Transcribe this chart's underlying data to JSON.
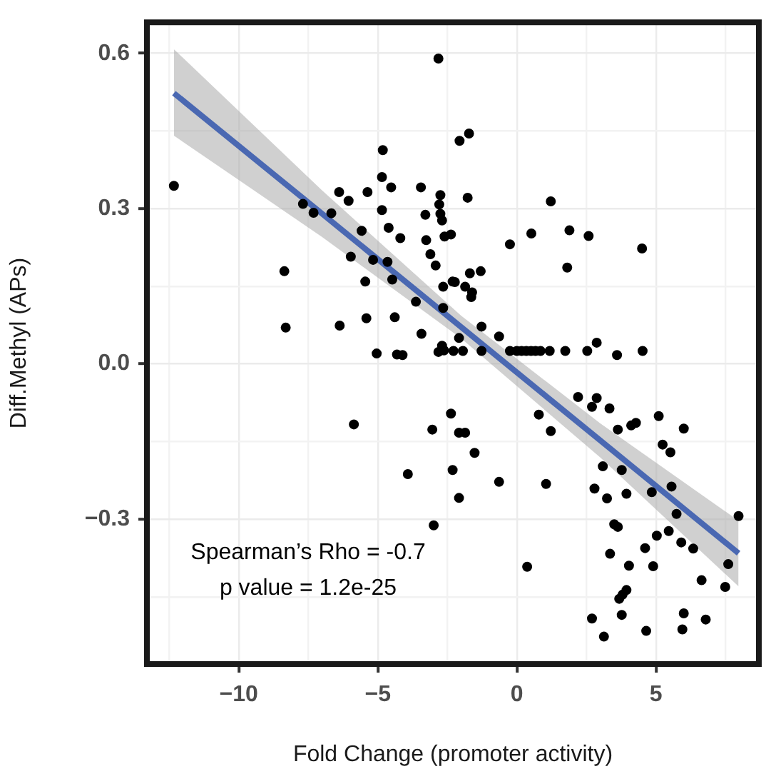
{
  "chart_data": {
    "type": "scatter",
    "xlabel": "Fold Change (promoter activity)",
    "ylabel": "Diff.Methyl (APs)",
    "annotations": [
      "Spearman’s Rho = -0.7",
      "p value = 1.2e-25"
    ],
    "xlim": [
      -13.3,
      8.7
    ],
    "ylim": [
      -0.58,
      0.66
    ],
    "xticks": [
      {
        "value": -12.5,
        "label": null
      },
      -10,
      {
        "value": -7.5,
        "label": null
      },
      -5,
      {
        "value": -2.5,
        "label": null
      },
      0,
      {
        "value": 2.5,
        "label": null
      },
      5,
      {
        "value": 7.5,
        "label": null
      }
    ],
    "yticks": [
      {
        "value": -0.45,
        "label": null
      },
      {
        "value": -0.3,
        "label": "−0.3"
      },
      {
        "value": -0.15,
        "label": null
      },
      {
        "value": 0,
        "label": "0.0"
      },
      {
        "value": 0.15,
        "label": null
      },
      {
        "value": 0.3,
        "label": "0.3"
      },
      {
        "value": 0.45,
        "label": null
      },
      {
        "value": 0.6,
        "label": "0.6"
      }
    ],
    "grid": true,
    "legend": false,
    "series": [
      {
        "marker": "circle",
        "color": "#000000",
        "x": [
          -2.82,
          -12.33,
          -4.82,
          -4.85,
          -4.52,
          -6.39,
          -6.05,
          -5.37,
          -3.45,
          -2.75,
          -2.79,
          -2.75,
          -2.69,
          -3.29,
          -4.85,
          -7.69,
          -7.31,
          -6.67,
          -5.58,
          -4.61,
          -4.19,
          -3.26,
          -2.6,
          -2.37,
          -3.11,
          -5.97,
          -5.17,
          -2.92,
          -4.65,
          -8.36,
          -5.45,
          -4.48,
          -2.65,
          -2.31,
          -3.63,
          -2.65,
          -8.31,
          -6.37,
          -5.41,
          -4.39,
          -3.43,
          -2.69,
          -1.72,
          -2.06,
          -1.77,
          1.22,
          -0.25,
          0.52,
          1.89,
          2.58,
          4.5,
          1.81,
          -2.23,
          -1.69,
          -1.3,
          -1.86,
          -1.61,
          -1.64,
          -1.27,
          -0.64,
          -2.08,
          -2.28,
          -1.94,
          -1.27,
          -0.25,
          0,
          0.17,
          0.34,
          0.51,
          0.67,
          0.85,
          1.18,
          1.74,
          2.53,
          2.87,
          3.6,
          4.52,
          -5.04,
          -4.31,
          -4.11,
          -2.82,
          -2.62,
          -5.86,
          -3.04,
          -3.92,
          -2.99,
          -2.37,
          -2.31,
          2.2,
          2.87,
          2.7,
          3.33,
          0.79,
          1.22,
          -2.08,
          -1.86,
          3.63,
          4.11,
          4.28,
          5.1,
          6.0,
          5.24,
          5.52,
          -1.52,
          3.09,
          3.77,
          -0.64,
          1.05,
          2.79,
          5.56,
          4.85,
          3.94,
          3.24,
          -2.08,
          5.74,
          7.97,
          3.5,
          3.63,
          5.46,
          5.03,
          5.91,
          4.61,
          6.34,
          3.35,
          7.6,
          4.03,
          4.9,
          0.37,
          6.64,
          7.49,
          3.94,
          3.8,
          3.68,
          6.0,
          3.77,
          2.7,
          6.79,
          5.95,
          4.65,
          3.13
        ],
        "values": [
          0.59,
          0.344,
          0.413,
          0.361,
          0.341,
          0.332,
          0.315,
          0.332,
          0.341,
          0.326,
          0.308,
          0.29,
          0.277,
          0.288,
          0.297,
          0.309,
          0.292,
          0.291,
          0.257,
          0.263,
          0.243,
          0.239,
          0.246,
          0.25,
          0.212,
          0.207,
          0.201,
          0.19,
          0.197,
          0.179,
          0.159,
          0.163,
          0.149,
          0.159,
          0.12,
          0.108,
          0.07,
          0.074,
          0.088,
          0.09,
          0.058,
          0.035,
          0.445,
          0.431,
          0.321,
          0.314,
          0.231,
          0.252,
          0.258,
          0.247,
          0.223,
          0.186,
          0.158,
          0.175,
          0.179,
          0.149,
          0.138,
          0.129,
          0.072,
          0.053,
          0.05,
          0.025,
          0.025,
          0.025,
          0.025,
          0.025,
          0.025,
          0.025,
          0.025,
          0.025,
          0.025,
          0.025,
          0.025,
          0.025,
          0.041,
          0.017,
          0.025,
          0.02,
          0.018,
          0.017,
          0.023,
          0.026,
          -0.117,
          -0.127,
          -0.213,
          -0.312,
          -0.096,
          -0.205,
          -0.064,
          -0.066,
          -0.083,
          -0.086,
          -0.098,
          -0.13,
          -0.133,
          -0.133,
          -0.127,
          -0.119,
          -0.114,
          -0.101,
          -0.125,
          -0.156,
          -0.171,
          -0.172,
          -0.198,
          -0.205,
          -0.228,
          -0.232,
          -0.241,
          -0.237,
          -0.248,
          -0.251,
          -0.26,
          -0.259,
          -0.29,
          -0.294,
          -0.31,
          -0.315,
          -0.323,
          -0.332,
          -0.345,
          -0.356,
          -0.357,
          -0.367,
          -0.387,
          -0.39,
          -0.391,
          -0.392,
          -0.418,
          -0.431,
          -0.437,
          -0.446,
          -0.454,
          -0.482,
          -0.485,
          -0.492,
          -0.494,
          -0.513,
          -0.516,
          -0.527
        ]
      },
      {
        "type": "line",
        "color": "#4a68b2",
        "x": [
          -12.33,
          -7,
          -2,
          3,
          7.97
        ],
        "values": [
          0.523,
          0.29,
          0.071,
          -0.148,
          -0.366
        ],
        "lower": [
          0.441,
          0.245,
          0.049,
          -0.181,
          -0.43
        ],
        "upper": [
          0.608,
          0.335,
          0.093,
          -0.115,
          -0.303
        ]
      }
    ]
  }
}
